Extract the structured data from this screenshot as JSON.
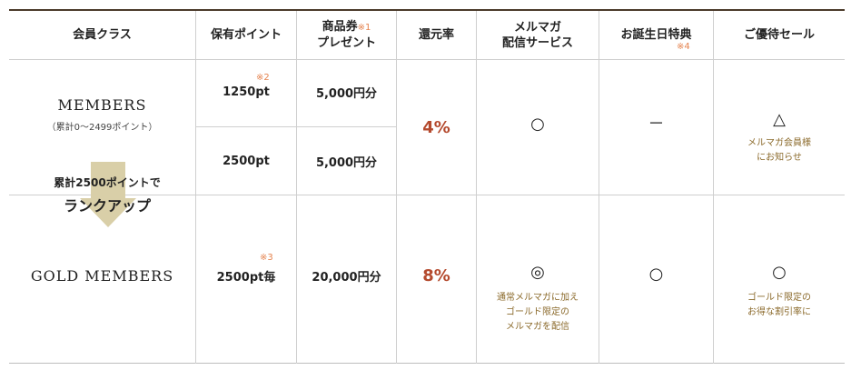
{
  "headers": {
    "member_class": "会員クラス",
    "points": "保有ポイント",
    "voucher_l1": "商品券",
    "voucher_note": "※1",
    "voucher_l2": "プレゼント",
    "return_rate": "還元率",
    "mail_l1": "メルマガ",
    "mail_l2": "配信サービス",
    "birthday": "お誕生日特典",
    "birthday_note": "※4",
    "sale": "ご優待セール"
  },
  "members": {
    "name": "MEMBERS",
    "range": "（累計0〜2499ポイント）",
    "row1_note": "※2",
    "row1_points": "1250pt",
    "row1_voucher": "5,000円分",
    "row2_points": "2500pt",
    "row2_voucher": "5,000円分",
    "rate": "4%",
    "mail_mark": "○",
    "birthday_mark": "－",
    "sale_mark": "△",
    "sale_sub_l1": "メルマガ会員様",
    "sale_sub_l2": "にお知らせ"
  },
  "rankup": {
    "line1": "累計2500ポイントで",
    "line2": "ランクアップ"
  },
  "gold": {
    "name": "GOLD MEMBERS",
    "note": "※3",
    "points": "2500pt毎",
    "voucher": "20,000円分",
    "rate": "8%",
    "mail_mark": "◎",
    "mail_sub_l1": "通常メルマガに加え",
    "mail_sub_l2": "ゴールド限定の",
    "mail_sub_l3": "メルマガを配信",
    "birthday_mark": "○",
    "sale_mark": "○",
    "sale_sub_l1": "ゴールド限定の",
    "sale_sub_l2": "お得な割引率に"
  },
  "colors": {
    "accent_red": "#b44a2e",
    "note_orange": "#e5834f",
    "sub_brown": "#8b6a2b",
    "arrow": "#d9cfa8",
    "border_top": "#4b3a2a"
  }
}
